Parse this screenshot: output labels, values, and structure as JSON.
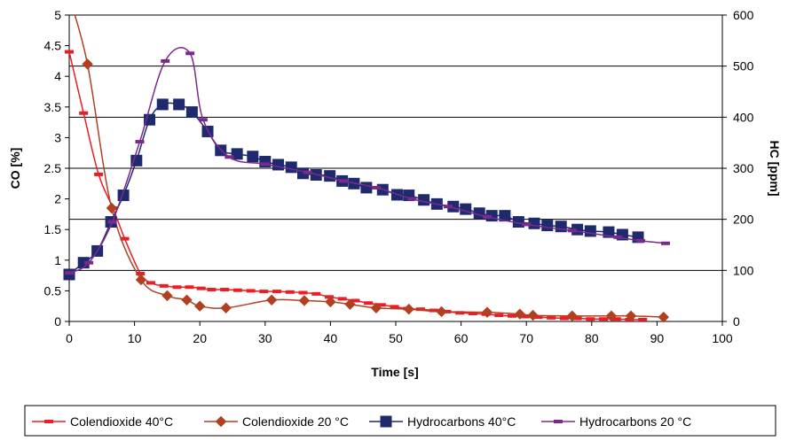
{
  "chart_data": {
    "type": "line",
    "xlabel": "Time [s]",
    "ylabel": "CO [%]",
    "y2label": "HC [ppm]",
    "xlim": [
      0,
      100
    ],
    "ylim": [
      0,
      5
    ],
    "y2lim": [
      0,
      600
    ],
    "xticks": [
      "0",
      "10",
      "20",
      "30",
      "40",
      "50",
      "60",
      "70",
      "80",
      "90",
      "100"
    ],
    "yticks": [
      "0",
      "0.5",
      "1",
      "1.5",
      "2",
      "2.5",
      "3",
      "3.5",
      "4",
      "4.5",
      "5"
    ],
    "y2ticks": [
      "0",
      "100",
      "200",
      "300",
      "400",
      "500",
      "600"
    ],
    "grid": "horizontal",
    "legend_position": "bottom",
    "series": [
      {
        "name": "Colendioxide 40°C",
        "axis": "left",
        "marker": "dash",
        "color": "#ee1c25",
        "x": [
          0,
          2.2,
          4.5,
          6.7,
          8.5,
          10.9,
          12.5,
          14.5,
          16.5,
          18.4,
          20.2,
          21.8,
          23.8,
          25.8,
          27.8,
          29.8,
          31.8,
          33.8,
          35.8,
          37.8,
          39.8,
          41.8,
          43.8,
          45.8,
          47.8,
          49.8,
          51.8,
          53.8,
          55.8,
          57.8,
          59.8,
          61.8,
          63.8,
          65.8,
          67.8,
          69.8,
          71.8,
          73.8,
          75.8,
          77.8,
          79.8,
          81.8,
          83.8,
          85.8,
          87.8
        ],
        "y": [
          4.4,
          3.4,
          2.4,
          1.85,
          1.35,
          0.78,
          0.63,
          0.58,
          0.56,
          0.56,
          0.54,
          0.52,
          0.52,
          0.51,
          0.5,
          0.49,
          0.49,
          0.48,
          0.47,
          0.45,
          0.4,
          0.37,
          0.34,
          0.3,
          0.27,
          0.24,
          0.21,
          0.2,
          0.18,
          0.16,
          0.14,
          0.13,
          0.12,
          0.1,
          0.09,
          0.08,
          0.07,
          0.06,
          0.05,
          0.05,
          0.04,
          0.04,
          0.04,
          0.03,
          0.03
        ]
      },
      {
        "name": "Colendioxide 20 °C",
        "axis": "left",
        "marker": "diamond",
        "color": "#b04020",
        "x": [
          0,
          2.8,
          6.5,
          11,
          15,
          18,
          20,
          24,
          31,
          36,
          40,
          43,
          47,
          52,
          57,
          64,
          69,
          71,
          77,
          83,
          86,
          91
        ],
        "y": [
          5.3,
          4.2,
          1.85,
          0.68,
          0.42,
          0.35,
          0.25,
          0.22,
          0.35,
          0.34,
          0.32,
          0.28,
          0.22,
          0.2,
          0.16,
          0.15,
          0.12,
          0.1,
          0.09,
          0.09,
          0.09,
          0.07
        ]
      },
      {
        "name": "Hydrocarbons 40°C",
        "axis": "right",
        "marker": "square",
        "color": "#1f2a6e",
        "x": [
          0,
          2.2,
          4.3,
          6.4,
          8.3,
          10.3,
          12.3,
          14.3,
          16.8,
          18.8,
          21.2,
          23.2,
          25.7,
          28.1,
          30,
          32,
          34,
          35.8,
          37.8,
          39.9,
          41.8,
          43.6,
          45.5,
          48,
          50.2,
          52,
          54.3,
          56.3,
          58.8,
          60.7,
          62.8,
          64.7,
          66.7,
          68.8,
          71.2,
          73.2,
          75.3,
          77.8,
          79.8,
          82.6,
          84.7,
          87.1
        ],
        "y": [
          92,
          115,
          138,
          195,
          247,
          315,
          395,
          425,
          425,
          410,
          372,
          335,
          328,
          323,
          313,
          307,
          302,
          290,
          287,
          285,
          275,
          270,
          262,
          258,
          248,
          247,
          238,
          230,
          225,
          220,
          212,
          207,
          207,
          195,
          192,
          188,
          186,
          180,
          177,
          175,
          170,
          165
        ]
      },
      {
        "name": "Hydrocarbons 20 °C",
        "axis": "right",
        "marker": "dash",
        "color": "#7b2a8c",
        "x": [
          0,
          3,
          6.6,
          10.8,
          14.7,
          18.5,
          20.5,
          24.5,
          30,
          36.5,
          42,
          47,
          52.5,
          58,
          64,
          70,
          77,
          84,
          87.5,
          91.3
        ],
        "y": [
          95,
          115,
          195,
          352,
          510,
          525,
          395,
          322,
          308,
          292,
          275,
          262,
          240,
          225,
          205,
          190,
          178,
          165,
          158,
          153
        ]
      }
    ]
  }
}
